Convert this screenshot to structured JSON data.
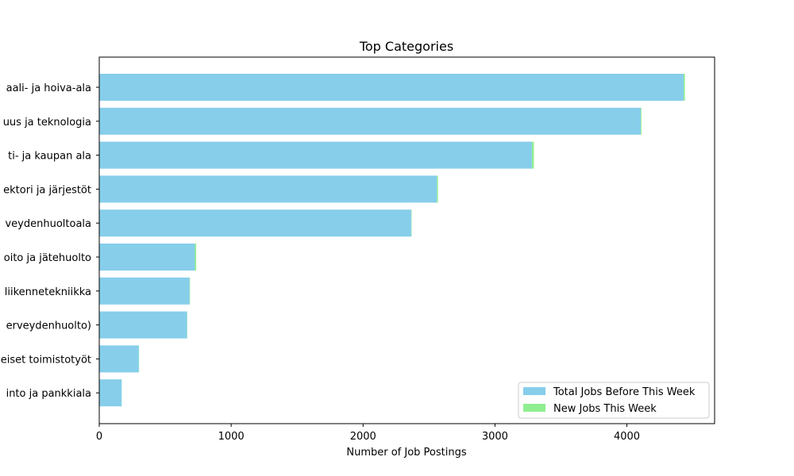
{
  "chart_data": {
    "type": "bar",
    "orientation": "horizontal",
    "stacked": true,
    "title": "Top Categories",
    "xlabel": "Number of Job Postings",
    "ylabel": "",
    "xlim": [
      0,
      4665
    ],
    "xticks": [
      0,
      1000,
      2000,
      3000,
      4000
    ],
    "grid": false,
    "legend_position": "bottom-right",
    "categories": [
      "aali- ja hoiva-ala",
      "uus ja teknologia",
      "ti- ja kaupan ala",
      "ektori ja järjestöt",
      "veydenhuoltoala",
      "oito ja jätehuolto",
      "liikennetekniikka",
      "erveydenhuolto)",
      "eiset toimistotyöt",
      "into ja pankkiala"
    ],
    "series": [
      {
        "name": "Total Jobs Before This Week",
        "color": "#87ceeb",
        "values": [
          4430,
          4105,
          3280,
          2560,
          2365,
          725,
          685,
          665,
          300,
          170
        ]
      },
      {
        "name": "New Jobs This Week",
        "color": "#90ee90",
        "values": [
          10,
          5,
          15,
          8,
          3,
          10,
          3,
          2,
          2,
          1
        ]
      }
    ]
  }
}
